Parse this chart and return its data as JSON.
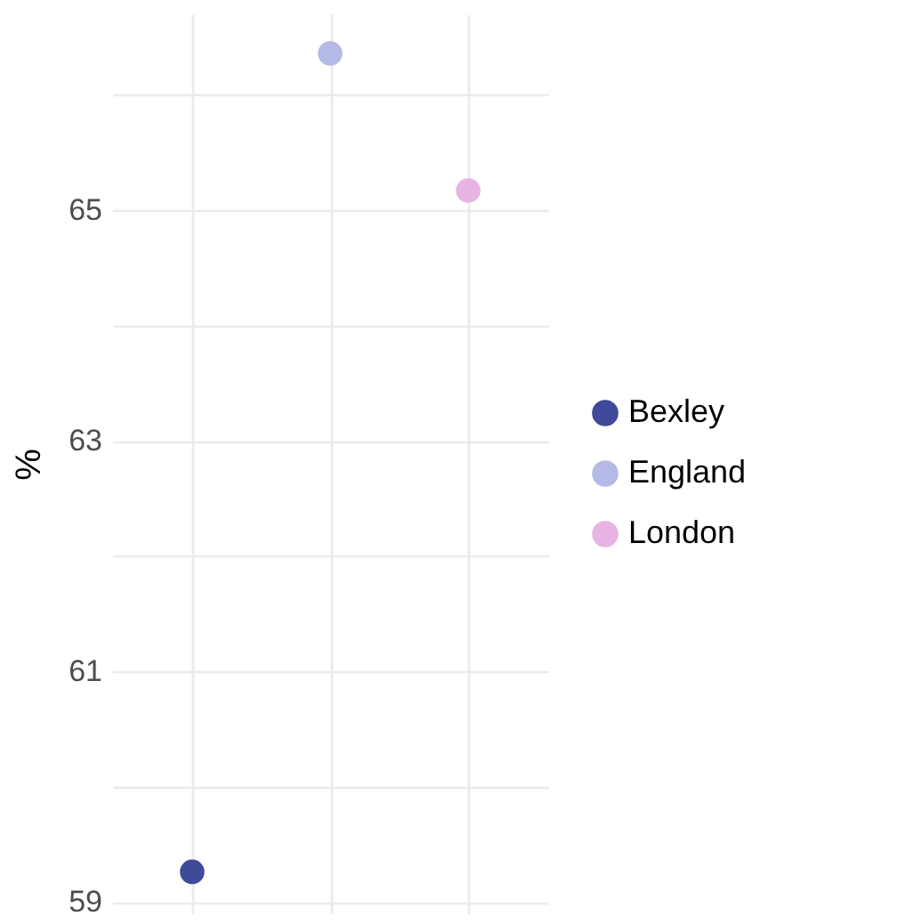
{
  "chart_data": {
    "type": "scatter",
    "ylabel": "%",
    "categories": [
      null,
      null,
      null
    ],
    "series": [
      {
        "name": "Bexley",
        "color": "#3f4a99",
        "values": [
          59.26,
          null,
          null
        ]
      },
      {
        "name": "England",
        "color": "#b4b9e6",
        "values": [
          null,
          66.36,
          null
        ]
      },
      {
        "name": "London",
        "color": "#e8b4e3",
        "values": [
          null,
          null,
          65.17
        ]
      }
    ],
    "ylim": [
      58.9,
      66.7
    ],
    "yticks": [
      59,
      {
        "value": 60,
        "label": null
      },
      61,
      {
        "value": 62,
        "label": null
      },
      63,
      {
        "value": 64,
        "label": null
      },
      65,
      {
        "value": 66,
        "label": null
      }
    ],
    "grid": true,
    "legend": "right",
    "marker": "circle",
    "tick_labels": "y"
  }
}
